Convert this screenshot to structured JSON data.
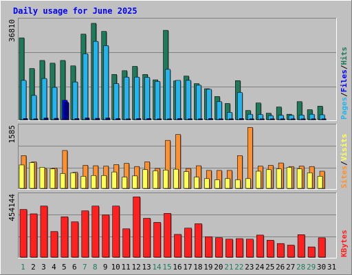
{
  "chart_data": {
    "type": "bar",
    "title": "Daily usage for June 2025",
    "categories": [
      "1",
      "2",
      "3",
      "4",
      "5",
      "6",
      "7",
      "8",
      "9",
      "10",
      "11",
      "12",
      "13",
      "14",
      "15",
      "16",
      "17",
      "18",
      "19",
      "20",
      "21",
      "22",
      "23",
      "24",
      "25",
      "26",
      "27",
      "28",
      "29",
      "30",
      "31"
    ],
    "weekend_days": [
      "1",
      "7",
      "8",
      "14",
      "15",
      "21",
      "22",
      "28",
      "29"
    ],
    "selected_day": "5",
    "colors": {
      "title": "#0000ff",
      "background": "#c0c0c0",
      "frame": "#ffffff",
      "hits": "#1e7a5a",
      "files": "#26b4ee",
      "files_selected": "#0000ff",
      "visits": "#ff9030",
      "sites": "#ffff55",
      "kbytes": "#ff2020",
      "weekend_label": "#1e7a5a",
      "weekday_label": "#000080",
      "gridline": "#808080"
    },
    "panels": [
      {
        "id": "top",
        "max_label": "36810",
        "ymax": 36810,
        "legend": [
          "Pages",
          "Files",
          "Hits"
        ],
        "legend_colors": [
          "#26b4ee",
          "#0000ff",
          "#1e7a5a"
        ],
        "series": [
          {
            "name": "Hits",
            "color": "#1e7a5a",
            "values": [
              30400,
              19000,
              22000,
              21000,
              22000,
              20000,
              31800,
              35800,
              32800,
              16800,
              18200,
              19800,
              16800,
              14800,
              33200,
              14400,
              16200,
              13400,
              11500,
              8600,
              6000,
              14500,
              3400,
              6200,
              2400,
              4700,
              2000,
              6700,
              3700,
              5000,
              0
            ]
          },
          {
            "name": "Files",
            "color": "#26b4ee",
            "values": [
              14600,
              9000,
              15300,
              12000,
              7200,
              14000,
              24500,
              29100,
              27500,
              13400,
              15800,
              15800,
              15700,
              14200,
              18700,
              14600,
              14600,
              12800,
              11300,
              6700,
              2700,
              10100,
              2000,
              1900,
              1500,
              1600,
              1600,
              1700,
              2000,
              1800,
              0
            ]
          },
          {
            "name": "Pages",
            "color": "#000080",
            "values": [
              400,
              300,
              600,
              500,
              6400,
              400,
              600,
              500,
              600,
              400,
              300,
              400,
              400,
              300,
              300,
              400,
              300,
              300,
              400,
              300,
              300,
              400,
              300,
              300,
              300,
              300,
              300,
              300,
              300,
              300,
              0
            ]
          }
        ]
      },
      {
        "id": "mid",
        "max_label": "1585",
        "ymax": 1585,
        "legend": [
          "Sites",
          "Visits"
        ],
        "legend_colors": [
          "#ff9030",
          "#ffff55"
        ],
        "series": [
          {
            "name": "Visits",
            "color": "#ff9030",
            "values": [
              840,
              680,
              510,
              520,
              970,
              410,
              590,
              580,
              570,
              610,
              640,
              560,
              680,
              510,
              1230,
              1380,
              510,
              580,
              460,
              460,
              460,
              840,
              1560,
              570,
              590,
              650,
              560,
              570,
              560,
              440,
              0
            ]
          },
          {
            "name": "Sites",
            "color": "#ffff55",
            "values": [
              600,
              660,
              540,
              500,
              380,
              400,
              310,
              330,
              330,
              420,
              290,
              320,
              480,
              450,
              470,
              490,
              430,
              290,
              250,
              220,
              250,
              220,
              250,
              440,
              480,
              500,
              540,
              500,
              400,
              310,
              0
            ]
          }
        ]
      },
      {
        "id": "bottom",
        "max_label": "454144",
        "ymax": 454144,
        "legend": [
          "KBytes"
        ],
        "legend_colors": [
          "#ff2020"
        ],
        "series": [
          {
            "name": "KBytes",
            "color": "#ff2020",
            "values": [
              350000,
              318000,
              375000,
              188000,
              296000,
              259000,
              340000,
              375000,
              310000,
              375000,
              208000,
              442000,
              285000,
              255000,
              321000,
              167000,
              213000,
              245000,
              150000,
              143000,
              132000,
              136000,
              132000,
              162000,
              124000,
              100000,
              88000,
              165000,
              75000,
              142000,
              0
            ]
          }
        ]
      }
    ]
  }
}
